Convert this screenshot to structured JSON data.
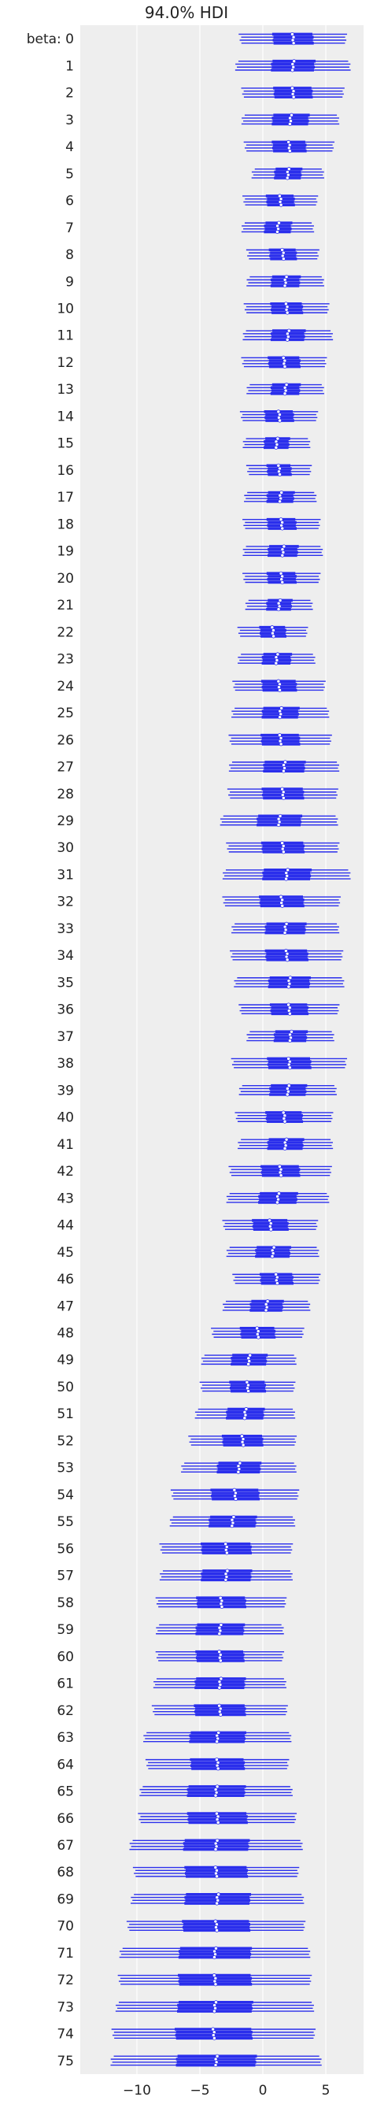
{
  "chart_data": {
    "type": "forest",
    "title": "94.0% HDI",
    "xlabel": "",
    "ylabel": "",
    "var_name": "beta",
    "xlim": [
      -14.5,
      8
    ],
    "xticks": [
      -10,
      -5,
      0,
      5
    ],
    "xtick_labels": [
      "−10",
      "−5",
      "0",
      "5"
    ],
    "grid": true,
    "chains": 4,
    "line_color": "#2a2eec",
    "background": "#eeeeee",
    "labels": [
      "beta: 0",
      "1",
      "2",
      "3",
      "4",
      "5",
      "6",
      "7",
      "8",
      "9",
      "10",
      "11",
      "12",
      "13",
      "14",
      "15",
      "16",
      "17",
      "18",
      "19",
      "20",
      "21",
      "22",
      "23",
      "24",
      "25",
      "26",
      "27",
      "28",
      "29",
      "30",
      "31",
      "32",
      "33",
      "34",
      "35",
      "36",
      "37",
      "38",
      "39",
      "40",
      "41",
      "42",
      "43",
      "44",
      "45",
      "46",
      "47",
      "48",
      "49",
      "50",
      "51",
      "52",
      "53",
      "54",
      "55",
      "56",
      "57",
      "58",
      "59",
      "60",
      "61",
      "62",
      "63",
      "64",
      "65",
      "66",
      "67",
      "68",
      "69",
      "70",
      "71",
      "72",
      "73",
      "74",
      "75"
    ],
    "centers": [
      2.4,
      2.4,
      2.4,
      2.2,
      2.1,
      2.0,
      1.4,
      1.2,
      1.6,
      1.8,
      1.9,
      2.0,
      1.7,
      1.8,
      1.3,
      1.1,
      1.3,
      1.4,
      1.5,
      1.6,
      1.5,
      1.3,
      0.8,
      1.1,
      1.3,
      1.4,
      1.4,
      1.7,
      1.6,
      1.3,
      1.6,
      1.9,
      1.5,
      1.8,
      1.9,
      2.1,
      2.1,
      2.2,
      2.1,
      2.0,
      1.7,
      1.8,
      1.4,
      1.2,
      0.6,
      0.8,
      1.1,
      0.3,
      -0.4,
      -1.1,
      -1.2,
      -1.4,
      -1.6,
      -1.9,
      -2.2,
      -2.4,
      -2.9,
      -2.9,
      -3.3,
      -3.4,
      -3.4,
      -3.4,
      -3.4,
      -3.6,
      -3.6,
      -3.7,
      -3.6,
      -3.7,
      -3.7,
      -3.6,
      -3.7,
      -3.8,
      -3.8,
      -3.8,
      -3.9,
      -3.7
    ],
    "hdi_94_half_width": [
      4.2,
      4.5,
      4.0,
      3.8,
      3.5,
      2.8,
      2.9,
      2.8,
      2.8,
      3.0,
      3.3,
      3.5,
      3.3,
      3.0,
      3.0,
      2.6,
      2.5,
      2.8,
      3.0,
      3.1,
      3.0,
      2.6,
      2.7,
      3.0,
      3.6,
      3.8,
      4.0,
      4.3,
      4.3,
      4.6,
      4.4,
      5.0,
      4.6,
      4.2,
      4.4,
      4.3,
      3.9,
      3.4,
      4.5,
      3.8,
      3.8,
      3.7,
      4.0,
      4.0,
      3.7,
      3.6,
      3.4,
      3.4,
      3.6,
      3.7,
      3.7,
      3.9,
      4.2,
      4.5,
      5.0,
      4.9,
      5.2,
      5.2,
      5.1,
      5.0,
      5.0,
      5.2,
      5.3,
      5.8,
      5.6,
      6.0,
      6.2,
      6.8,
      6.5,
      6.8,
      7.0,
      7.5,
      7.6,
      7.8,
      8.0,
      8.3
    ]
  }
}
